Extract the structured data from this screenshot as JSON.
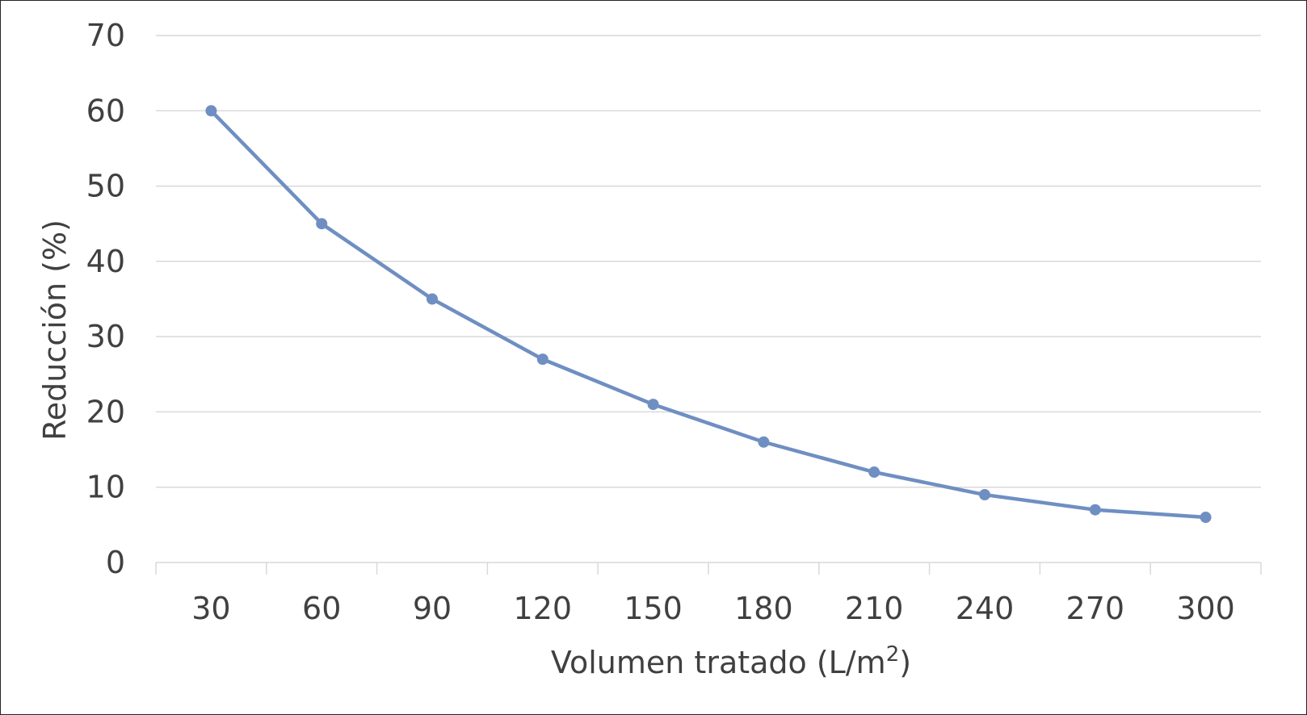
{
  "chart_data": {
    "type": "line",
    "title": "",
    "xlabel": "Volumen tratado (L/m",
    "xlabel_sup": "2",
    "xlabel_close": ")",
    "ylabel": "Reducción (%)",
    "categories": [
      "30",
      "60",
      "90",
      "120",
      "150",
      "180",
      "210",
      "240",
      "270",
      "300"
    ],
    "series": [
      {
        "values": [
          60,
          45,
          35,
          27,
          21,
          16,
          12,
          9,
          7,
          6
        ],
        "color": "#6f8fc2",
        "marker": "circle"
      }
    ],
    "ylim": [
      0,
      70
    ],
    "yticks": [
      "0",
      "10",
      "20",
      "30",
      "40",
      "50",
      "60",
      "70"
    ],
    "grid": true,
    "legend": "none",
    "colors": {
      "gridline": "#d9d9d9",
      "axis": "#d9d9d9",
      "text": "#404040"
    }
  }
}
